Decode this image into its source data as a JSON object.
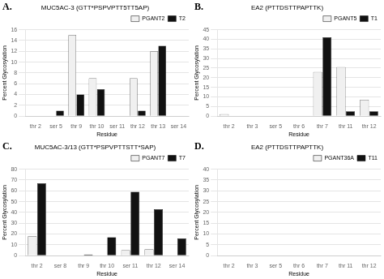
{
  "chart_data": [
    {
      "type": "bar",
      "title": "MUC5AC-3 (GTT*PSPVPTT5TT5AP)",
      "xlabel": "Residue",
      "ylabel": "Percent Glycosylation",
      "annotations": [
        "A."
      ],
      "categories": [
        "thr 2",
        "ser 5",
        "thr 9",
        "thr 10",
        "ser 11",
        "thr 12",
        "thr 13",
        "ser 14"
      ],
      "series": [
        {
          "name": "PGANT2",
          "color": "#f0f0f0",
          "values": [
            0,
            0,
            15.0,
            7.0,
            0,
            7.0,
            12.0,
            0
          ]
        },
        {
          "name": "T2",
          "color": "#111111",
          "values": [
            0,
            1.0,
            4.0,
            5.0,
            0,
            1.0,
            13.0,
            0
          ]
        }
      ],
      "ylim": [
        0,
        16
      ],
      "yticks": [
        0,
        2,
        4,
        6,
        8,
        10,
        12,
        14,
        16
      ],
      "grid": true,
      "legend": "upper right"
    },
    {
      "type": "bar",
      "title": "EA2 (PTTDSTTPAPTTK)",
      "xlabel": "Residue",
      "ylabel": "Percent Glycosylation",
      "annotations": [
        "B."
      ],
      "categories": [
        "thr 2",
        "thr 3",
        "ser 5",
        "thr 6",
        "thr 7",
        "thr 11",
        "thr 12"
      ],
      "series": [
        {
          "name": "PGANT5",
          "color": "#f0f0f0",
          "values": [
            1.0,
            0,
            0,
            0,
            23.0,
            25.5,
            8.5
          ]
        },
        {
          "name": "T1",
          "color": "#111111",
          "values": [
            0,
            0,
            0,
            0,
            41.0,
            2.5,
            2.5
          ]
        }
      ],
      "ylim": [
        0,
        45
      ],
      "yticks": [
        0,
        5,
        10,
        15,
        20,
        25,
        30,
        35,
        40,
        45
      ],
      "grid": true,
      "legend": "upper right"
    },
    {
      "type": "bar",
      "title": "MUC5AC-3/13 (GTT*PSPVPTTSTT*SAP)",
      "xlabel": "Residue",
      "ylabel": "Percent Glycosylation",
      "annotations": [
        "C."
      ],
      "categories": [
        "thr 2",
        "ser 8",
        "thr 9",
        "thr 10",
        "ser 11",
        "thr 12",
        "ser 14"
      ],
      "series": [
        {
          "name": "PGANT7",
          "color": "#f0f0f0",
          "values": [
            18.0,
            0,
            0,
            0,
            5.0,
            6.0,
            0
          ]
        },
        {
          "name": "T7",
          "color": "#111111",
          "values": [
            67.0,
            0,
            1.0,
            17.0,
            59.0,
            43.0,
            16.0
          ]
        }
      ],
      "ylim": [
        0,
        80
      ],
      "yticks": [
        0,
        10,
        20,
        30,
        40,
        50,
        60,
        70,
        80
      ],
      "grid": true,
      "legend": "upper right"
    },
    {
      "type": "bar",
      "title": "EA2 (PTTDSTTPAPTTK)",
      "xlabel": "Residue",
      "ylabel": "Percent Glycosylation",
      "annotations": [
        "D."
      ],
      "categories": [
        "thr 2",
        "thr 3",
        "ser 5",
        "thr 6",
        "thr 7",
        "thr 11",
        "thr 12"
      ],
      "series": [
        {
          "name": "PGANT36A",
          "color": "#f0f0f0",
          "values": [
            0,
            0,
            0,
            0,
            0,
            0,
            0
          ]
        },
        {
          "name": "T11",
          "color": "#111111",
          "values": [
            0,
            0,
            0,
            0,
            0,
            0,
            0
          ]
        }
      ],
      "ylim": [
        0,
        40
      ],
      "yticks": [
        0,
        5,
        10,
        15,
        20,
        25,
        30,
        35,
        40
      ],
      "grid": true,
      "legend": "upper right"
    }
  ]
}
